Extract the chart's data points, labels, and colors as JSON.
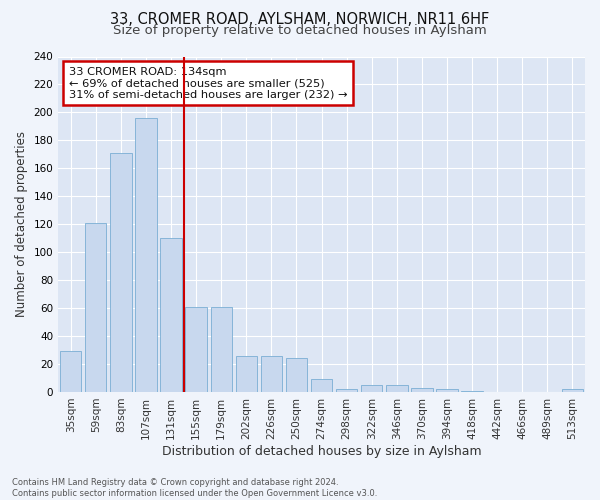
{
  "title_line1": "33, CROMER ROAD, AYLSHAM, NORWICH, NR11 6HF",
  "title_line2": "Size of property relative to detached houses in Aylsham",
  "xlabel": "Distribution of detached houses by size in Aylsham",
  "ylabel": "Number of detached properties",
  "footnote": "Contains HM Land Registry data © Crown copyright and database right 2024.\nContains public sector information licensed under the Open Government Licence v3.0.",
  "bar_labels": [
    "35sqm",
    "59sqm",
    "83sqm",
    "107sqm",
    "131sqm",
    "155sqm",
    "179sqm",
    "202sqm",
    "226sqm",
    "250sqm",
    "274sqm",
    "298sqm",
    "322sqm",
    "346sqm",
    "370sqm",
    "394sqm",
    "418sqm",
    "442sqm",
    "466sqm",
    "489sqm",
    "513sqm"
  ],
  "bar_values": [
    29,
    121,
    171,
    196,
    110,
    61,
    61,
    26,
    26,
    24,
    9,
    2,
    5,
    5,
    3,
    2,
    1,
    0,
    0,
    0,
    2
  ],
  "bar_color": "#c8d8ee",
  "bar_edge_color": "#7aaed4",
  "vline_x_idx": 4,
  "vline_color": "#cc0000",
  "annotation_text": "33 CROMER ROAD: 134sqm\n← 69% of detached houses are smaller (525)\n31% of semi-detached houses are larger (232) →",
  "annotation_box_facecolor": "#ffffff",
  "annotation_box_edgecolor": "#cc0000",
  "ylim": [
    0,
    240
  ],
  "yticks": [
    0,
    20,
    40,
    60,
    80,
    100,
    120,
    140,
    160,
    180,
    200,
    220,
    240
  ],
  "background_color": "#f0f4fb",
  "plot_bg_color": "#dde6f4",
  "grid_color": "#ffffff",
  "title_fontsize": 10.5,
  "subtitle_fontsize": 9.5,
  "ylabel_fontsize": 8.5,
  "xlabel_fontsize": 9,
  "tick_fontsize": 7.5,
  "footnote_fontsize": 6.0
}
